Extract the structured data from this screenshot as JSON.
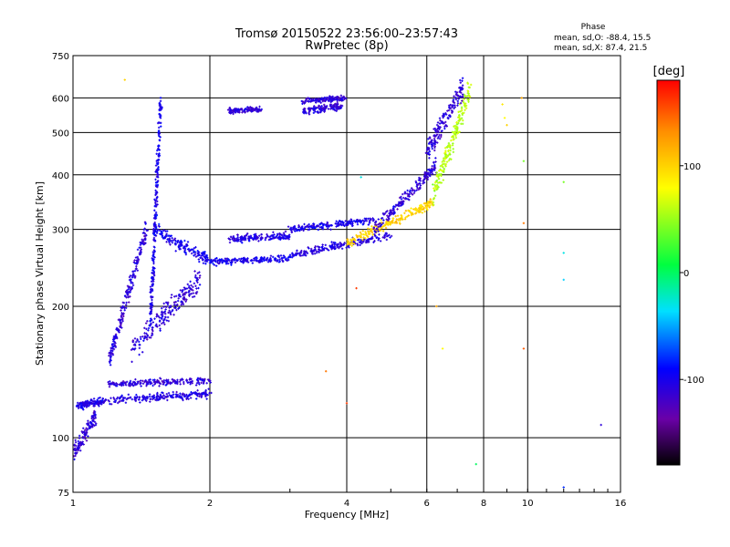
{
  "chart_data": {
    "type": "scatter",
    "title": "Tromsø 20150522 23:56:00–23:57:43",
    "subtitle": "RwPretec (8p)",
    "xlabel": "Frequency [MHz]",
    "ylabel": "Stationary phase Virtual Height [km]",
    "x_scale": "log",
    "y_scale": "log",
    "xlim": [
      1,
      16
    ],
    "ylim": [
      75,
      750
    ],
    "x_ticks": [
      1,
      2,
      4,
      6,
      8,
      10,
      16
    ],
    "y_ticks": [
      75,
      100,
      200,
      300,
      400,
      500,
      600,
      750
    ],
    "grid": true,
    "stats": {
      "title": "Phase",
      "line_o": "mean, sd,O: -88.4, 15.5",
      "line_x": "mean, sd,X: 87.4, 21.5"
    },
    "colorbar": {
      "unit": "[deg]",
      "ticks": [
        100,
        0,
        -100
      ],
      "range": [
        -180,
        180
      ],
      "colormap": "rainbow (black → violet → blue → cyan → green → yellow → orange → red)"
    },
    "traces": [
      {
        "x0": 1.0,
        "x1": 1.12,
        "h0": 92,
        "h1": 112,
        "phase": -110,
        "spread": 0.06
      },
      {
        "x0": 1.02,
        "x1": 1.18,
        "h0": 118,
        "h1": 122,
        "phase": -105,
        "spread": 0.03
      },
      {
        "x0": 1.2,
        "x1": 2.0,
        "h0": 122,
        "h1": 126,
        "phase": -105,
        "spread": 0.03
      },
      {
        "x0": 1.2,
        "x1": 2.0,
        "h0": 133,
        "h1": 135,
        "phase": -110,
        "spread": 0.025
      },
      {
        "x0": 1.2,
        "x1": 1.45,
        "h0": 150,
        "h1": 300,
        "phase": -108,
        "spread": 0.07
      },
      {
        "x0": 1.35,
        "x1": 1.9,
        "h0": 160,
        "h1": 230,
        "phase": -110,
        "spread": 0.09
      },
      {
        "x0": 1.48,
        "x1": 1.56,
        "h0": 180,
        "h1": 600,
        "phase": -100,
        "spread": 0.05
      },
      {
        "x0": 1.5,
        "x1": 2.0,
        "h0": 300,
        "h1": 255,
        "phase": -100,
        "spread": 0.05
      },
      {
        "x0": 2.0,
        "x1": 3.0,
        "h0": 252,
        "h1": 258,
        "phase": -100,
        "spread": 0.025
      },
      {
        "x0": 2.2,
        "x1": 3.0,
        "h0": 285,
        "h1": 290,
        "phase": -105,
        "spread": 0.03
      },
      {
        "x0": 3.0,
        "x1": 5.0,
        "h0": 262,
        "h1": 290,
        "phase": -105,
        "spread": 0.03
      },
      {
        "x0": 3.0,
        "x1": 4.6,
        "h0": 300,
        "h1": 315,
        "phase": -100,
        "spread": 0.03
      },
      {
        "x0": 4.0,
        "x1": 6.2,
        "h0": 280,
        "h1": 345,
        "phase": 100,
        "spread": 0.04
      },
      {
        "x0": 4.6,
        "x1": 6.3,
        "h0": 300,
        "h1": 420,
        "phase": -110,
        "spread": 0.05
      },
      {
        "x0": 6.2,
        "x1": 7.5,
        "h0": 360,
        "h1": 630,
        "phase": 60,
        "spread": 0.09
      },
      {
        "x0": 6.0,
        "x1": 7.2,
        "h0": 450,
        "h1": 640,
        "phase": -110,
        "spread": 0.08
      },
      {
        "x0": 3.2,
        "x1": 3.9,
        "h0": 560,
        "h1": 575,
        "phase": -110,
        "spread": 0.03
      },
      {
        "x0": 3.2,
        "x1": 4.0,
        "h0": 590,
        "h1": 600,
        "phase": -110,
        "spread": 0.02
      },
      {
        "x0": 2.2,
        "x1": 2.6,
        "h0": 560,
        "h1": 565,
        "phase": -110,
        "spread": 0.02
      }
    ],
    "scatter_outliers": [
      [
        1.3,
        660,
        100
      ],
      [
        4.0,
        120,
        160
      ],
      [
        4.2,
        220,
        160
      ],
      [
        6.3,
        200,
        120
      ],
      [
        6.5,
        160,
        80
      ],
      [
        7.7,
        87,
        0
      ],
      [
        9.8,
        430,
        40
      ],
      [
        9.8,
        310,
        140
      ],
      [
        9.8,
        160,
        150
      ],
      [
        12.0,
        385,
        40
      ],
      [
        12.0,
        265,
        -30
      ],
      [
        12.0,
        230,
        -40
      ],
      [
        12.0,
        77,
        -80
      ],
      [
        14.5,
        107,
        -110
      ],
      [
        3.6,
        142,
        140
      ],
      [
        4.3,
        395,
        -30
      ],
      [
        8.8,
        580,
        90
      ],
      [
        8.9,
        540,
        80
      ],
      [
        9.0,
        520,
        100
      ],
      [
        9.7,
        600,
        120
      ]
    ]
  }
}
